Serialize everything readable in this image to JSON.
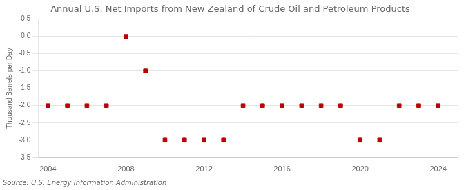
{
  "chart_data": {
    "type": "scatter",
    "title": "Annual U.S. Net Imports from New Zealand of Crude Oil and Petroleum Products",
    "ylabel": "Thousand Barrels per Day",
    "annotation": "Source: U.S. Energy Information Administration",
    "x": [
      2004,
      2005,
      2006,
      2007,
      2008,
      2009,
      2010,
      2011,
      2012,
      2013,
      2014,
      2015,
      2016,
      2017,
      2018,
      2019,
      2020,
      2021,
      2022,
      2023,
      2024
    ],
    "values": [
      -2,
      -2,
      -2,
      -2,
      0,
      -1,
      -3,
      -3,
      -3,
      -3,
      -2,
      -2,
      -2,
      -2,
      -2,
      -2,
      -3,
      -3,
      -2,
      -2,
      -2
    ],
    "color": "#bb0000",
    "marker": "square",
    "xlim": [
      2003.5,
      2025
    ],
    "xticks": [
      2004,
      2008,
      2012,
      2016,
      2020,
      2024
    ],
    "ylim": [
      -3.5,
      0.5
    ],
    "yticks": [
      0.5,
      {
        "value": 0,
        "label": "0.0"
      },
      -0.5,
      {
        "value": -1,
        "label": "-1.0"
      },
      -1.5,
      {
        "value": -2,
        "label": "-2.0"
      },
      -2.5,
      {
        "value": -3,
        "label": "-3.0"
      },
      -3.5
    ],
    "grid": true
  }
}
